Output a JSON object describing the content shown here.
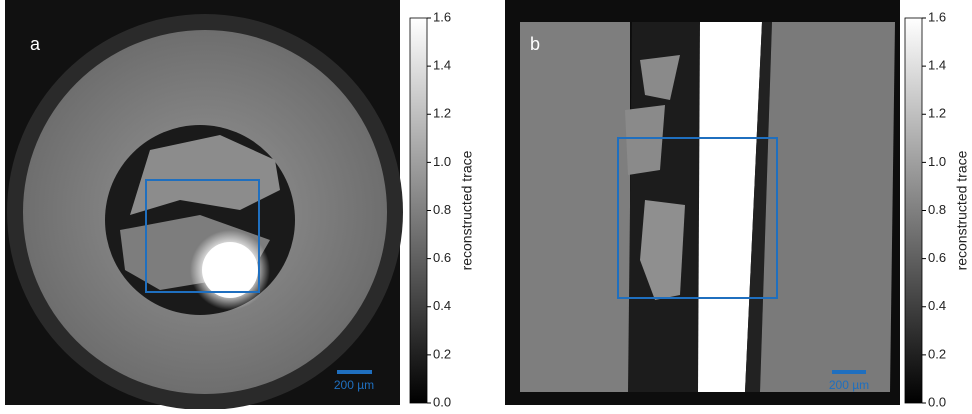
{
  "panels": [
    {
      "label": "a",
      "scale_bar": "200 µm",
      "colorbar": {
        "label": "reconstructed trace",
        "lim": [
          0,
          1.6
        ],
        "ticks": [
          {
            "value": 0,
            "label": "0.0"
          },
          0.2,
          0.4,
          0.6,
          0.8,
          {
            "value": 1,
            "label": "1.0"
          },
          1.2,
          1.4,
          1.6
        ]
      }
    },
    {
      "label": "b",
      "scale_bar": "200 µm",
      "colorbar": {
        "label": "reconstructed trace",
        "lim": [
          0,
          1.6
        ],
        "ticks": [
          {
            "value": 0,
            "label": "0.0"
          },
          0.2,
          0.4,
          0.6,
          0.8,
          {
            "value": 1,
            "label": "1.0"
          },
          1.2,
          1.4,
          1.6
        ]
      }
    }
  ]
}
